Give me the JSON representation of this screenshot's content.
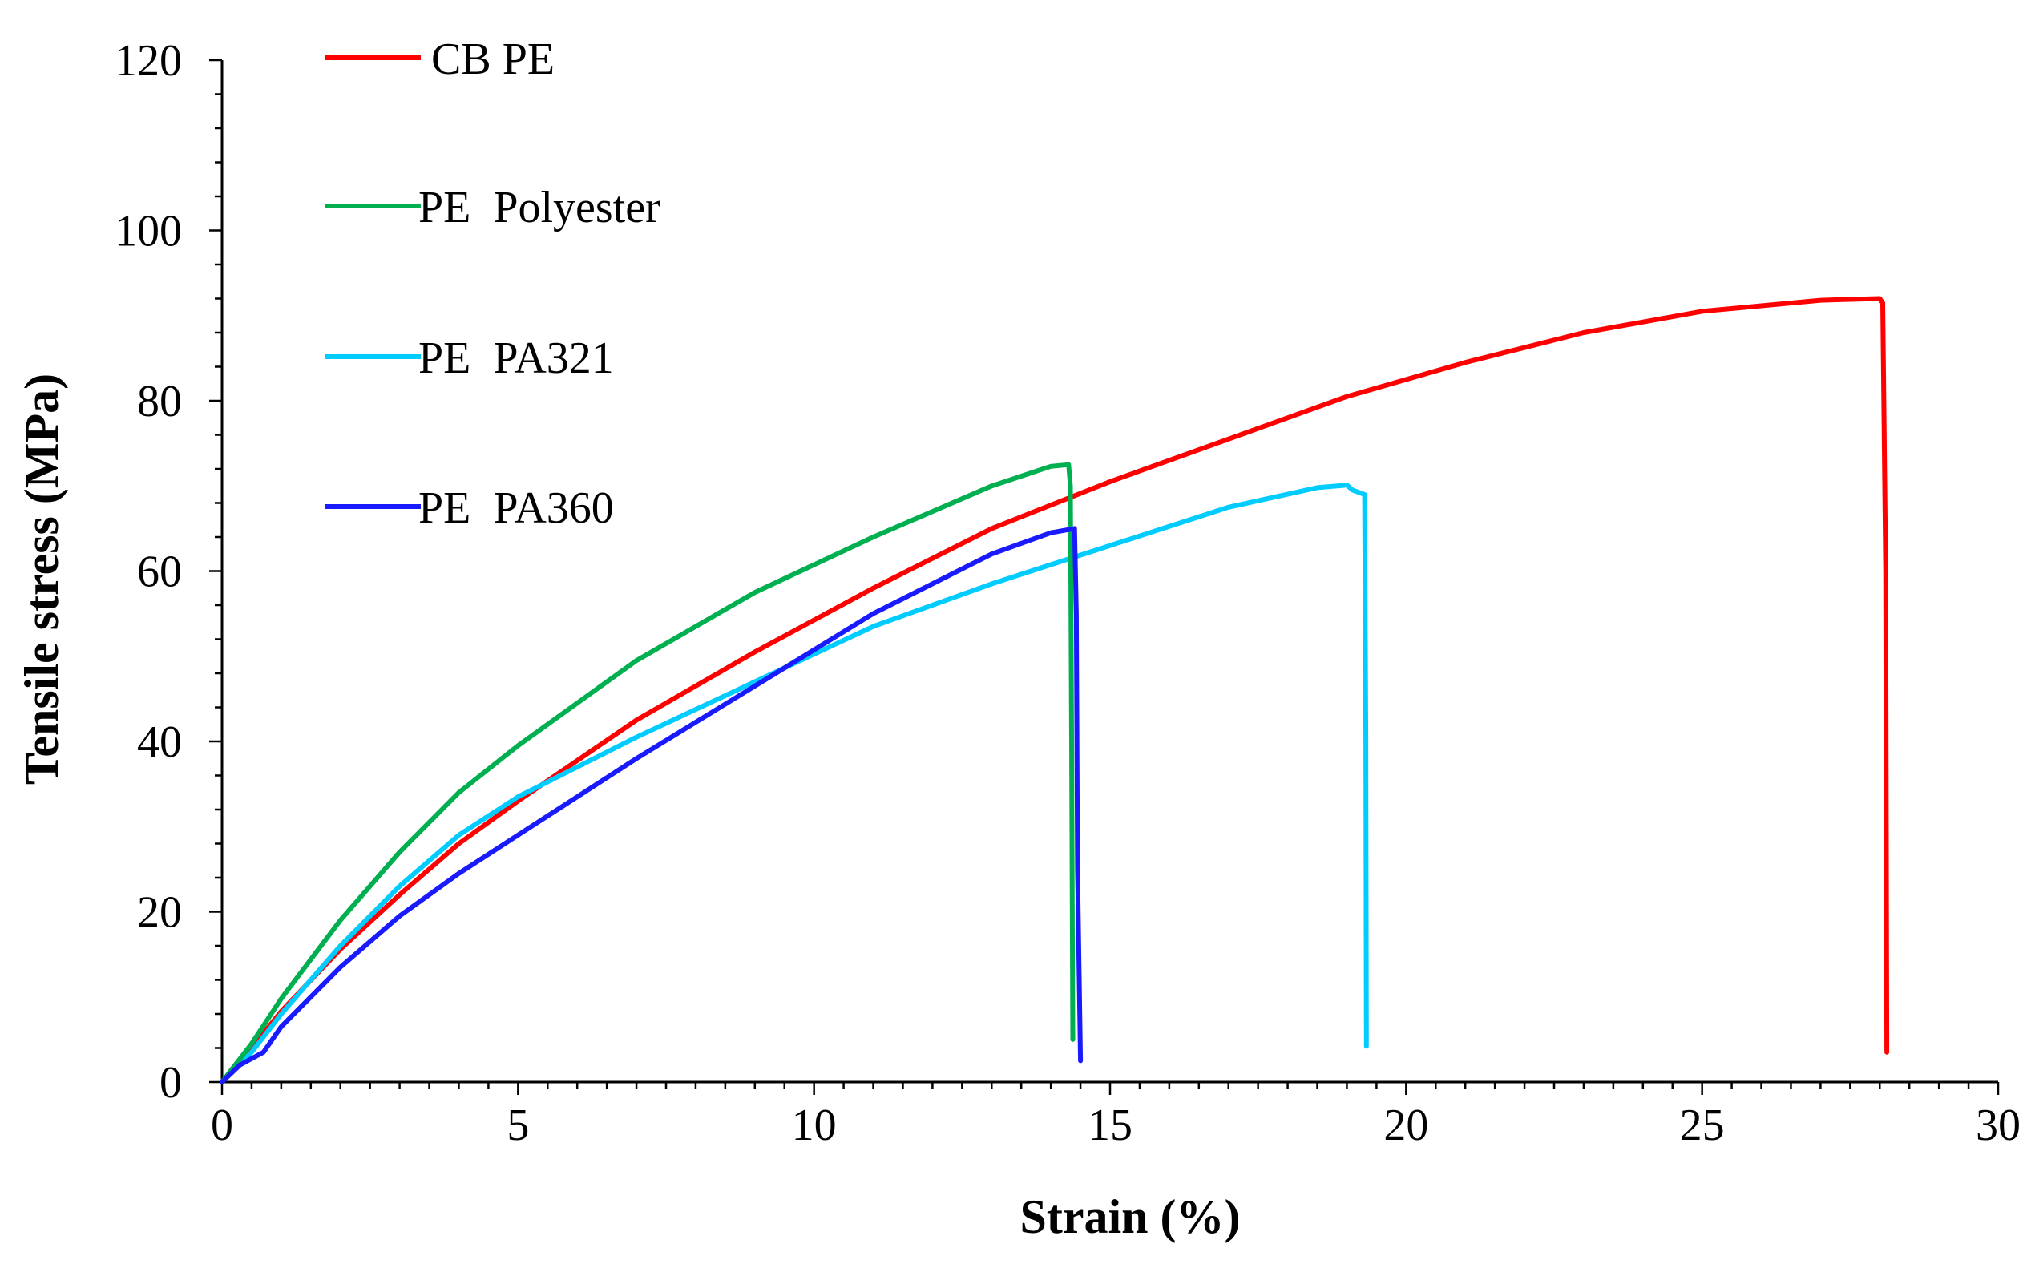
{
  "chart_data": {
    "type": "line",
    "title": "",
    "xlabel": "Strain (%)",
    "ylabel": "Tensile stress (MPa)",
    "xlim": [
      0,
      30
    ],
    "ylim": [
      0,
      120
    ],
    "xticks": [
      0,
      5,
      10,
      15,
      20,
      25,
      30
    ],
    "yticks": [
      0,
      20,
      40,
      60,
      80,
      100,
      120
    ],
    "x_minor_step": 0.5,
    "y_minor_step": 4,
    "grid": false,
    "legend_position": "top-left",
    "series": [
      {
        "name": "CB PE",
        "color": "#ff0000",
        "points": [
          [
            0,
            0
          ],
          [
            0.5,
            4
          ],
          [
            1,
            8.3
          ],
          [
            2,
            15.6
          ],
          [
            3,
            22
          ],
          [
            4,
            28
          ],
          [
            5,
            33
          ],
          [
            7,
            42.5
          ],
          [
            9,
            50.5
          ],
          [
            11,
            58
          ],
          [
            13,
            65
          ],
          [
            15,
            70.5
          ],
          [
            17,
            75.5
          ],
          [
            19,
            80.5
          ],
          [
            21,
            84.5
          ],
          [
            23,
            88
          ],
          [
            25,
            90.5
          ],
          [
            27,
            91.8
          ],
          [
            28,
            92
          ],
          [
            28.05,
            91.5
          ],
          [
            28.1,
            60
          ],
          [
            28.12,
            3.5
          ]
        ]
      },
      {
        "name": "PE  Polyester",
        "color": "#00b050",
        "points": [
          [
            0,
            0
          ],
          [
            0.5,
            4.5
          ],
          [
            1,
            9.8
          ],
          [
            2,
            19
          ],
          [
            3,
            27
          ],
          [
            4,
            34
          ],
          [
            5,
            39.5
          ],
          [
            7,
            49.5
          ],
          [
            9,
            57.5
          ],
          [
            11,
            64
          ],
          [
            13,
            70
          ],
          [
            14,
            72.3
          ],
          [
            14.3,
            72.5
          ],
          [
            14.33,
            70
          ],
          [
            14.35,
            40
          ],
          [
            14.37,
            5
          ]
        ]
      },
      {
        "name": "PE  PA321",
        "color": "#00ccff",
        "points": [
          [
            0,
            0
          ],
          [
            0.5,
            3.5
          ],
          [
            1,
            8
          ],
          [
            2,
            16
          ],
          [
            3,
            23
          ],
          [
            4,
            29
          ],
          [
            5,
            33.5
          ],
          [
            7,
            40.5
          ],
          [
            9,
            47
          ],
          [
            11,
            53.5
          ],
          [
            13,
            58.5
          ],
          [
            15,
            63
          ],
          [
            17,
            67.5
          ],
          [
            18.5,
            69.8
          ],
          [
            19,
            70.1
          ],
          [
            19.1,
            69.5
          ],
          [
            19.3,
            69
          ],
          [
            19.32,
            40
          ],
          [
            19.33,
            4.2
          ]
        ]
      },
      {
        "name": "PE  PA360",
        "color": "#1a1aff",
        "points": [
          [
            0,
            0
          ],
          [
            0.3,
            2
          ],
          [
            0.7,
            3.5
          ],
          [
            1,
            6.5
          ],
          [
            2,
            13.5
          ],
          [
            3,
            19.5
          ],
          [
            4,
            24.5
          ],
          [
            5,
            29
          ],
          [
            7,
            38
          ],
          [
            9,
            46.5
          ],
          [
            11,
            55
          ],
          [
            13,
            62
          ],
          [
            14,
            64.5
          ],
          [
            14.4,
            65
          ],
          [
            14.43,
            55
          ],
          [
            14.45,
            25
          ],
          [
            14.5,
            2.5
          ]
        ]
      }
    ]
  }
}
